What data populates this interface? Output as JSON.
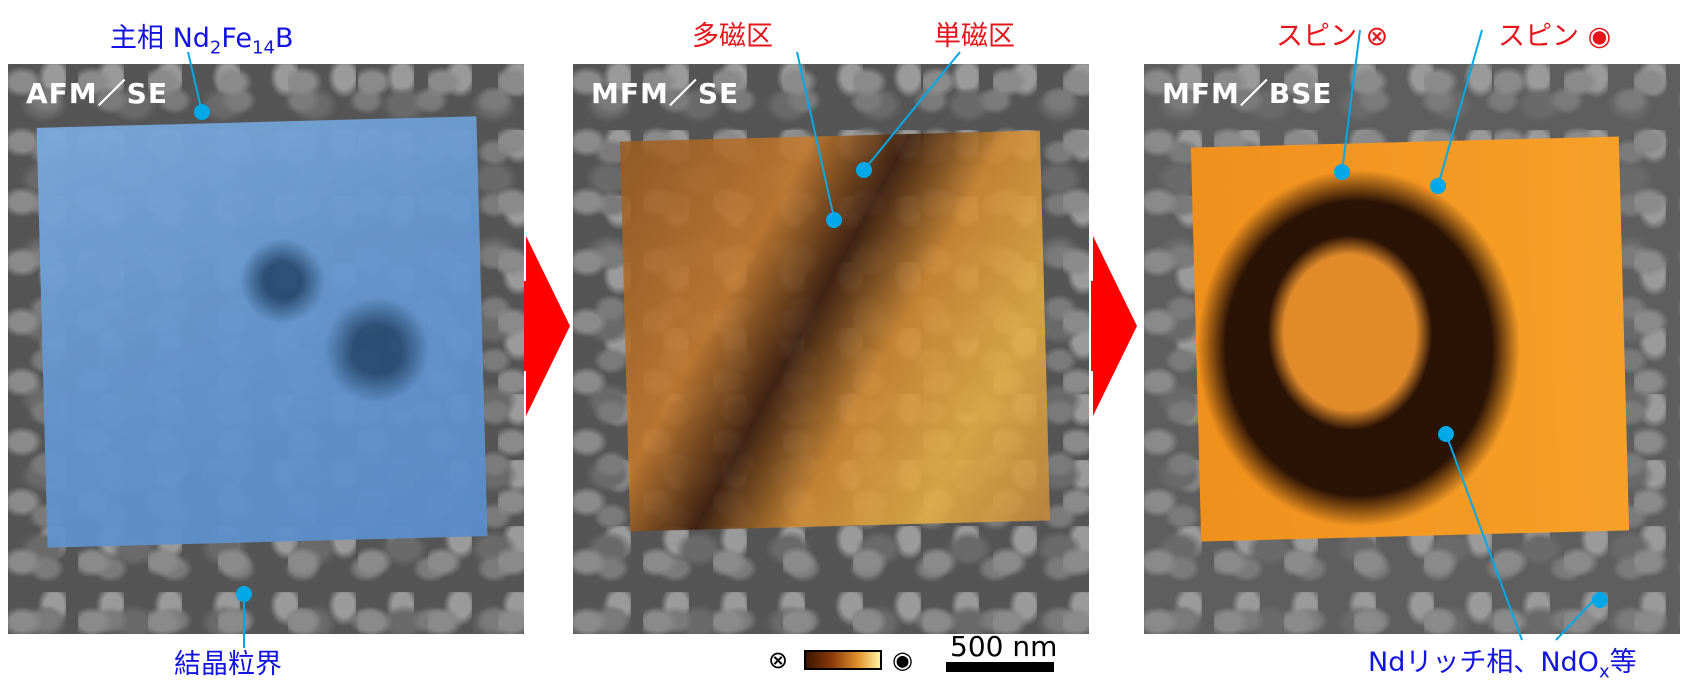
{
  "panels": [
    {
      "label": "AFM／SE"
    },
    {
      "label": "MFM／SE"
    },
    {
      "label": "MFM／BSE"
    }
  ],
  "annotations": {
    "main_phase": "主相 Nd",
    "main_phase_sub1": "2",
    "main_phase_mid": "Fe",
    "main_phase_sub2": "14",
    "main_phase_end": "B",
    "grain_boundary": "結晶粒界",
    "multi_domain": "多磁区",
    "single_domain": "単磁区",
    "spin_in": "スピン ⊗",
    "spin_out": "スピン",
    "nd_rich": "Ndリッチ相、NdO",
    "nd_rich_sub": "x",
    "nd_rich_end": "等"
  },
  "colorbar": {
    "left_symbol": "⊗",
    "right_symbol": "◉"
  },
  "scale": {
    "text": "500 nm"
  },
  "colors": {
    "accent_red": "#e8141b",
    "accent_blue": "#1414e0",
    "pointer": "#00a8e8",
    "arrow": "#ff0000"
  }
}
